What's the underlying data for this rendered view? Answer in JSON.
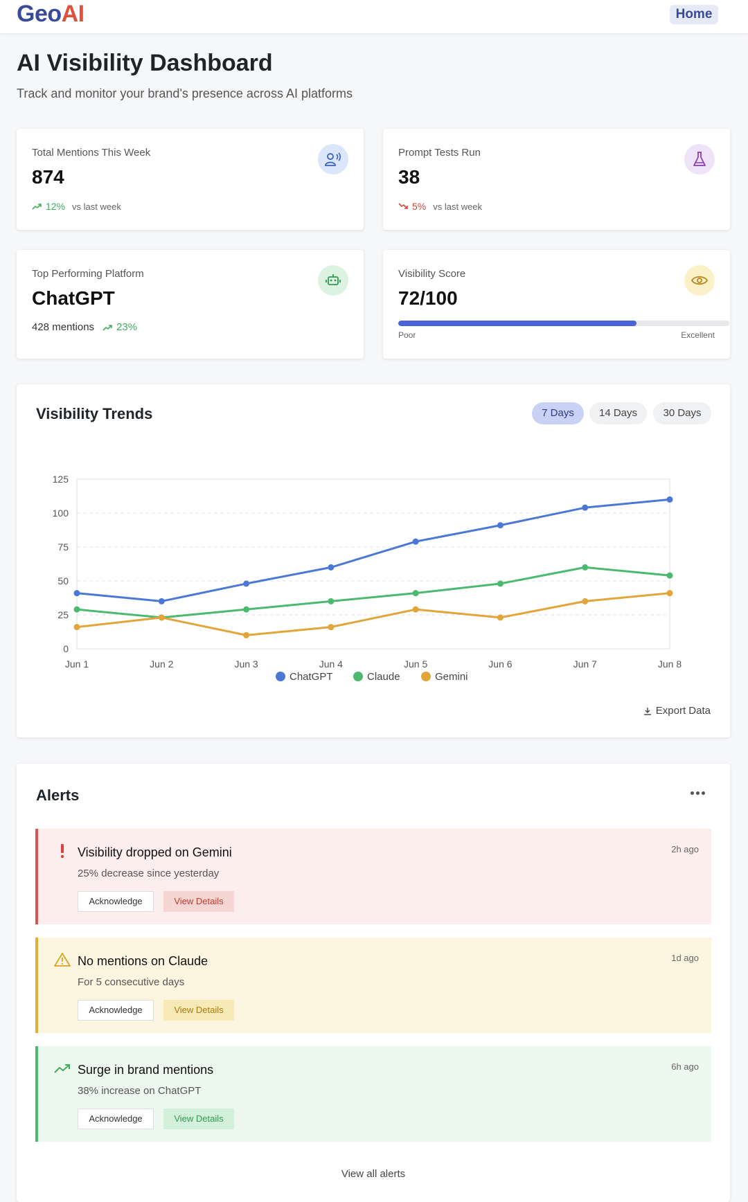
{
  "header": {
    "logo_geo": "Geo",
    "logo_ai": "AI",
    "home_label": "Home"
  },
  "page": {
    "title": "AI Visibility Dashboard",
    "subtitle": "Track and monitor your brand's presence across AI platforms"
  },
  "stats": {
    "mentions": {
      "label": "Total Mentions This Week",
      "value": "874",
      "change": "12%",
      "change_note": "vs last week",
      "icon": "broadcast-user-icon"
    },
    "prompts": {
      "label": "Prompt Tests Run",
      "value": "38",
      "change": "5%",
      "change_note": "vs last week",
      "icon": "flask-icon"
    },
    "platform": {
      "label": "Top Performing Platform",
      "value": "ChatGPT",
      "mentions": "428 mentions",
      "change": "23%",
      "icon": "robot-icon"
    },
    "score": {
      "label": "Visibility Score",
      "value": "72/100",
      "fraction": 0.72,
      "min_label": "Poor",
      "max_label": "Excellent",
      "icon": "eye-icon"
    }
  },
  "trends": {
    "title": "Visibility Trends",
    "ranges": [
      "7 Days",
      "14 Days",
      "30 Days"
    ],
    "active_range": "7 Days",
    "export_label": "Export Data"
  },
  "chart_data": {
    "type": "line",
    "x": [
      "Jun 1",
      "Jun 2",
      "Jun 3",
      "Jun 4",
      "Jun 5",
      "Jun 6",
      "Jun 7",
      "Jun 8"
    ],
    "ylim": [
      0,
      125
    ],
    "yticks": [
      0,
      25,
      50,
      75,
      100,
      125
    ],
    "grid": "dashed-horizontal",
    "legend": "bottom-center",
    "series": [
      {
        "name": "ChatGPT",
        "color": "#4a78d4",
        "values": [
          41,
          35,
          48,
          60,
          79,
          91,
          104,
          110
        ]
      },
      {
        "name": "Claude",
        "color": "#4cb971",
        "values": [
          29,
          23,
          29,
          35,
          41,
          48,
          60,
          54
        ]
      },
      {
        "name": "Gemini",
        "color": "#e1a53a",
        "values": [
          16,
          23,
          10,
          16,
          29,
          23,
          35,
          41
        ]
      }
    ]
  },
  "alerts": {
    "title": "Alerts",
    "items": [
      {
        "title": "Visibility dropped on Gemini",
        "desc": "25% decrease since yesterday",
        "time": "2h ago",
        "ack": "Acknowledge",
        "view": "View Details",
        "icon": "exclamation-icon"
      },
      {
        "title": "No mentions on Claude",
        "desc": "For 5 consecutive days",
        "time": "1d ago",
        "ack": "Acknowledge",
        "view": "View Details",
        "icon": "warning-triangle-icon"
      },
      {
        "title": "Surge in brand mentions",
        "desc": "38% increase on ChatGPT",
        "time": "6h ago",
        "ack": "Acknowledge",
        "view": "View Details",
        "icon": "trending-up-icon"
      }
    ],
    "view_all": "View all alerts"
  }
}
